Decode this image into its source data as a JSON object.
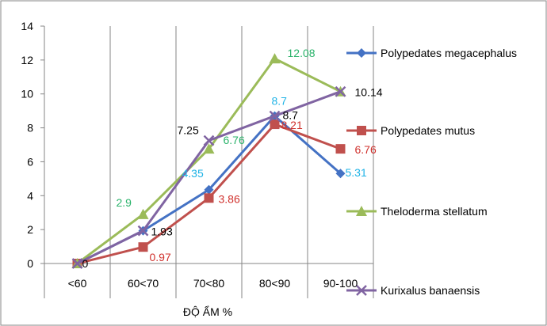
{
  "chart_data": {
    "type": "line",
    "title": "",
    "xlabel": "ĐỘ ẨM %",
    "ylabel": "",
    "categories": [
      "<60",
      "60<70",
      "70<80",
      "80<90",
      "90-100"
    ],
    "ylim": [
      0,
      14
    ],
    "yticks": [
      "0",
      "2",
      "4",
      "6",
      "8",
      "10",
      "12",
      "14"
    ],
    "grid": "vertical",
    "legend_position": "right",
    "series": [
      {
        "name": "Polypedates megacephalus",
        "color": "#4472c4",
        "marker": "diamond",
        "label_color": "#1fb3e6",
        "values": [
          0,
          1.93,
          4.35,
          8.7,
          5.31
        ],
        "labels": [
          "",
          "",
          "4.35",
          "8.7",
          "5.31"
        ]
      },
      {
        "name": "Polypedates mutus",
        "color": "#c0504d",
        "marker": "square",
        "label_color": "#d0312d",
        "values": [
          0,
          0.97,
          3.86,
          8.21,
          6.76
        ],
        "labels": [
          "",
          "0.97",
          "3.86",
          "8.21",
          "6.76"
        ]
      },
      {
        "name": "Theloderma stellatum",
        "color": "#9bbb59",
        "marker": "triangle",
        "label_color": "#2bb36b",
        "values": [
          0,
          2.9,
          6.76,
          12.08,
          10.14
        ],
        "labels": [
          "",
          "2.9",
          "6.76",
          "12.08",
          ""
        ]
      },
      {
        "name": "Kurixalus banaensis",
        "color": "#8064a2",
        "marker": "x",
        "label_color": "#000000",
        "values": [
          0,
          1.93,
          7.25,
          8.7,
          10.14
        ],
        "labels": [
          "0",
          "1.93",
          "7.25",
          "8.7",
          "10.14"
        ]
      }
    ]
  }
}
